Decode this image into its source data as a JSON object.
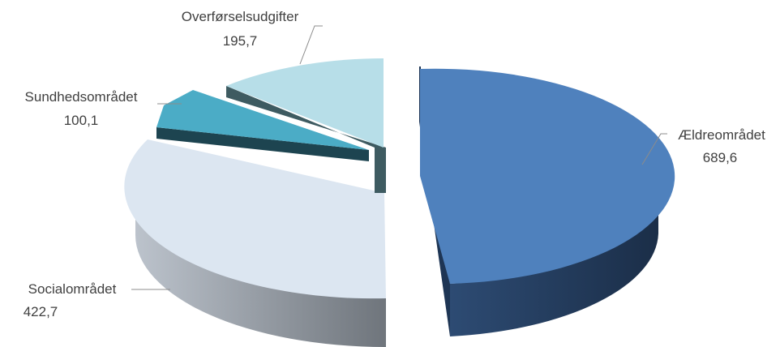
{
  "chart_data": {
    "type": "pie",
    "style": "3d-exploded",
    "title": "",
    "legend": "none",
    "slices": [
      {
        "label": "Ældreområdet",
        "value": 689.6,
        "value_text": "689,6",
        "color": "#4f81bd"
      },
      {
        "label": "Socialområdet",
        "value": 422.7,
        "value_text": "422,7",
        "color": "#dce6f1"
      },
      {
        "label": "Sundhedsområdet",
        "value": 100.1,
        "value_text": "100,1",
        "color": "#4bacc6"
      },
      {
        "label": "Overførselsudgifter",
        "value": 195.7,
        "value_text": "195,7",
        "color": "#b7dee8"
      }
    ]
  }
}
